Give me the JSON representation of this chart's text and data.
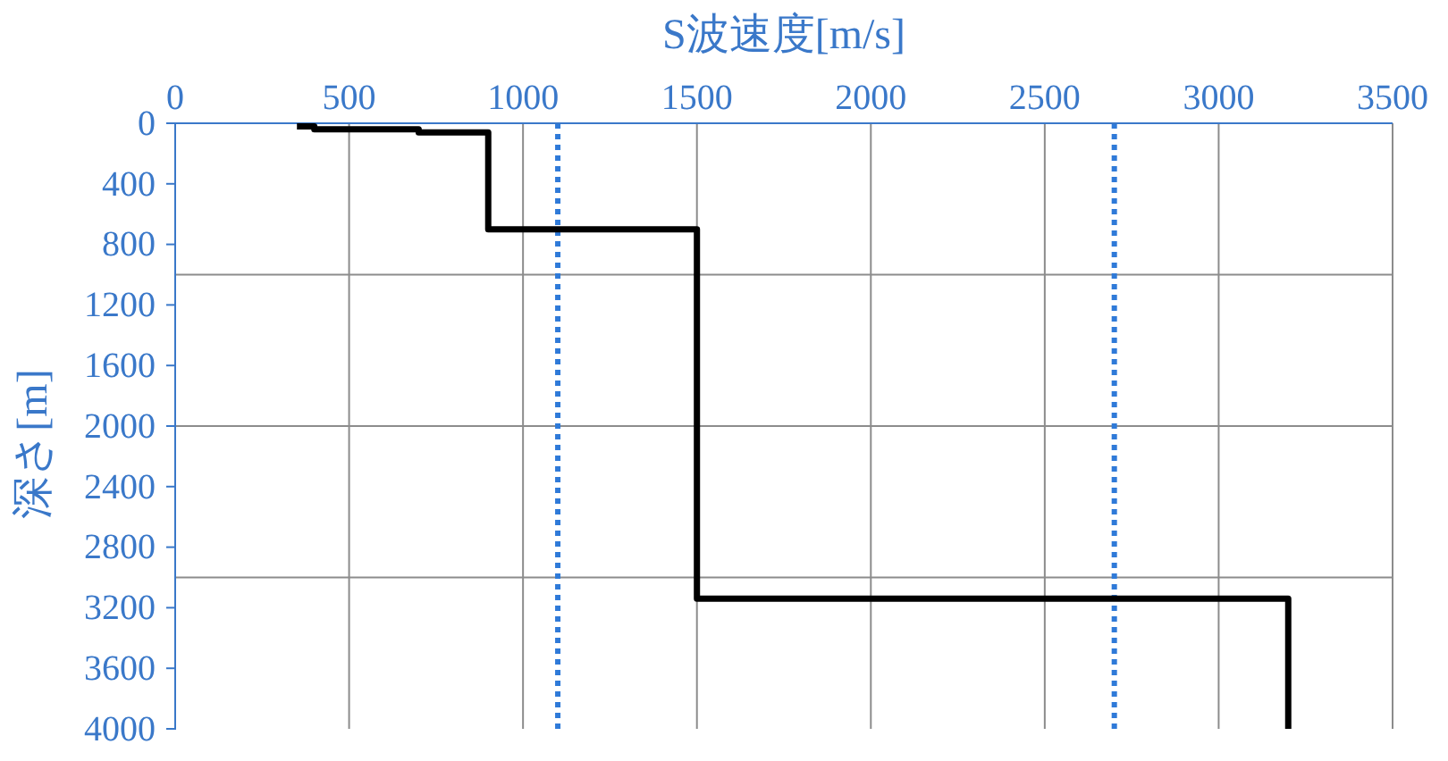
{
  "chart_data": {
    "type": "line",
    "xlabel": "S波速度[m/s]",
    "ylabel": "深さ[m]",
    "x": [
      350,
      400,
      400,
      700,
      700,
      900,
      900,
      1500,
      1500,
      3200,
      3200
    ],
    "series": [
      {
        "color": "#000000",
        "values": [
          20,
          20,
          40,
          40,
          60,
          60,
          700,
          700,
          3140,
          3140,
          4000
        ]
      }
    ],
    "xlim": [
      0,
      3500
    ],
    "xticks": [
      0,
      500,
      1000,
      1500,
      2000,
      2500,
      3000,
      3500
    ],
    "ylim": [
      4000,
      0
    ],
    "yticks": [
      0,
      400,
      800,
      1200,
      1600,
      2000,
      2400,
      2800,
      3200,
      3600,
      4000
    ],
    "grid": "x",
    "marker": "none",
    "line_style": "solid",
    "ref_lines": [
      {
        "axis": "y",
        "value": 1000,
        "color": "#8c8c8c",
        "line_style": "solid"
      },
      {
        "axis": "y",
        "value": 2000,
        "color": "#8c8c8c",
        "line_style": "solid"
      },
      {
        "axis": "y",
        "value": 3000,
        "color": "#8c8c8c",
        "line_style": "solid"
      },
      {
        "axis": "x",
        "value": 1100,
        "color": "#2f7ad8",
        "line_style": "dotted"
      },
      {
        "axis": "x",
        "value": 2700,
        "color": "#2f7ad8",
        "line_style": "dotted"
      }
    ]
  }
}
